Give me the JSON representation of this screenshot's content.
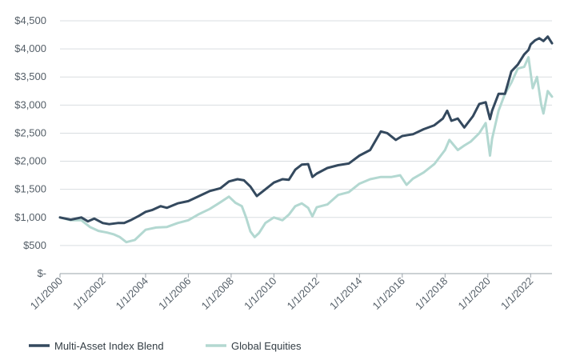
{
  "chart_data": {
    "type": "line",
    "title": "",
    "xlabel": "",
    "ylabel": "",
    "ylim": [
      0,
      4500
    ],
    "xlim": [
      2000,
      2023
    ],
    "y_ticks": [
      0,
      500,
      1000,
      1500,
      2000,
      2500,
      3000,
      3500,
      4000,
      4500
    ],
    "y_tick_labels": [
      "$-",
      "$500",
      "$1,000",
      "$1,500",
      "$2,000",
      "$2,500",
      "$3,000",
      "$3,500",
      "$4,000",
      "$4,500"
    ],
    "x_ticks": [
      2000,
      2002,
      2004,
      2006,
      2008,
      2010,
      2012,
      2014,
      2016,
      2018,
      2020,
      2022
    ],
    "x_tick_labels": [
      "1/1/2000",
      "1/1/2002",
      "1/1/2004",
      "1/1/2006",
      "1/1/2008",
      "1/1/2010",
      "1/1/2012",
      "1/1/2014",
      "1/1/2016",
      "1/1/2018",
      "1/1/2020",
      "1/1/2022"
    ],
    "grid": true,
    "legend_position": "bottom-left",
    "series": [
      {
        "name": "Multi-Asset Index Blend",
        "color": "#34495e",
        "x": [
          2000.0,
          2000.5,
          2001.0,
          2001.3,
          2001.6,
          2002.0,
          2002.3,
          2002.7,
          2003.0,
          2003.3,
          2003.7,
          2004.0,
          2004.3,
          2004.7,
          2005.0,
          2005.5,
          2006.0,
          2006.5,
          2007.0,
          2007.5,
          2007.9,
          2008.3,
          2008.6,
          2008.9,
          2009.2,
          2009.5,
          2010.0,
          2010.4,
          2010.7,
          2011.0,
          2011.3,
          2011.6,
          2011.8,
          2012.0,
          2012.5,
          2013.0,
          2013.5,
          2014.0,
          2014.5,
          2015.0,
          2015.3,
          2015.7,
          2016.0,
          2016.5,
          2017.0,
          2017.5,
          2017.9,
          2018.1,
          2018.3,
          2018.6,
          2018.9,
          2019.3,
          2019.6,
          2019.9,
          2020.1,
          2020.2,
          2020.5,
          2020.8,
          2021.1,
          2021.4,
          2021.7,
          2021.9,
          2022.0,
          2022.2,
          2022.4,
          2022.6,
          2022.8,
          2023.0
        ],
        "values": [
          1000,
          960,
          1000,
          930,
          980,
          900,
          880,
          900,
          900,
          950,
          1030,
          1100,
          1130,
          1200,
          1170,
          1250,
          1290,
          1380,
          1470,
          1520,
          1640,
          1680,
          1660,
          1550,
          1380,
          1470,
          1620,
          1680,
          1670,
          1850,
          1940,
          1950,
          1720,
          1780,
          1880,
          1930,
          1960,
          2100,
          2200,
          2530,
          2500,
          2380,
          2450,
          2480,
          2570,
          2640,
          2760,
          2900,
          2720,
          2760,
          2600,
          2800,
          3020,
          3050,
          2750,
          2900,
          3200,
          3200,
          3600,
          3720,
          3900,
          3980,
          4080,
          4150,
          4190,
          4140,
          4220,
          4100
        ]
      },
      {
        "name": "Global Equities",
        "color": "#b3d8d1",
        "x": [
          2000.0,
          2000.5,
          2001.0,
          2001.4,
          2001.8,
          2002.2,
          2002.5,
          2002.8,
          2003.1,
          2003.5,
          2004.0,
          2004.5,
          2005.0,
          2005.5,
          2006.0,
          2006.5,
          2007.0,
          2007.5,
          2007.9,
          2008.2,
          2008.5,
          2008.7,
          2008.9,
          2009.1,
          2009.3,
          2009.6,
          2010.0,
          2010.4,
          2010.7,
          2011.0,
          2011.3,
          2011.6,
          2011.8,
          2012.0,
          2012.5,
          2013.0,
          2013.5,
          2014.0,
          2014.5,
          2015.0,
          2015.5,
          2015.9,
          2016.2,
          2016.5,
          2017.0,
          2017.5,
          2018.0,
          2018.2,
          2018.6,
          2018.9,
          2019.2,
          2019.6,
          2019.9,
          2020.1,
          2020.2,
          2020.5,
          2020.8,
          2021.1,
          2021.4,
          2021.7,
          2021.9,
          2022.1,
          2022.3,
          2022.5,
          2022.6,
          2022.8,
          2023.0
        ],
        "values": [
          1000,
          950,
          950,
          830,
          760,
          730,
          700,
          650,
          560,
          600,
          780,
          820,
          830,
          900,
          950,
          1060,
          1150,
          1270,
          1370,
          1260,
          1200,
          1000,
          750,
          650,
          720,
          900,
          1000,
          950,
          1050,
          1200,
          1250,
          1170,
          1020,
          1180,
          1230,
          1400,
          1450,
          1600,
          1680,
          1720,
          1720,
          1750,
          1580,
          1690,
          1800,
          1950,
          2200,
          2380,
          2200,
          2280,
          2350,
          2500,
          2680,
          2100,
          2400,
          2900,
          3200,
          3400,
          3650,
          3680,
          3850,
          3300,
          3500,
          3000,
          2850,
          3250,
          3150
        ]
      }
    ]
  }
}
